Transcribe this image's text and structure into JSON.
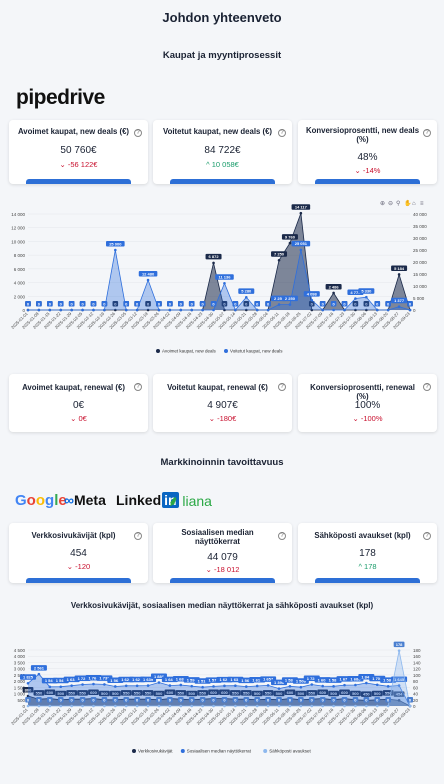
{
  "page": {
    "title": "Johdon yhteenveto"
  },
  "sales": {
    "section_title": "Kaupat ja myyntiprosessit",
    "logo_text": "pipedrive",
    "cards_new": [
      {
        "label": "Avoimet kaupat, new deals (€)",
        "value": "50 760€",
        "delta": "-56 122€",
        "delta_dir": "down"
      },
      {
        "label": "Voitetut kaupat, new deals (€)",
        "value": "84 722€",
        "delta": "10 058€",
        "delta_dir": "up"
      },
      {
        "label": "Konversioprosentti, new deals (%)",
        "value": "48%",
        "delta": "-14%",
        "delta_dir": "down"
      }
    ],
    "cards_renewal": [
      {
        "label": "Avoimet kaupat, renewal (€)",
        "value": "0€",
        "delta": "0€",
        "delta_dir": "down"
      },
      {
        "label": "Voitetut kaupat, renewal (€)",
        "value": "4 907€",
        "delta": "-180€",
        "delta_dir": "down"
      },
      {
        "label": "Konversioprosentti, renewal (%)",
        "value": "100%",
        "delta": "-100%",
        "delta_dir": "down"
      }
    ]
  },
  "marketing": {
    "section_title": "Markkinoinnin tavoittavuus",
    "brands": [
      "Google",
      "Meta",
      "Linked",
      "in",
      "liana"
    ],
    "cards": [
      {
        "label": "Verkkosivukävijät (kpl)",
        "value": "454",
        "delta": "-120",
        "delta_dir": "down"
      },
      {
        "label": "Sosiaalisen median näyttökerrat",
        "value": "44 079",
        "delta": "-18 012",
        "delta_dir": "down"
      },
      {
        "label": "Sähköposti avaukset (kpl)",
        "value": "178",
        "delta": "178",
        "delta_dir": "up"
      }
    ],
    "chart2_title": "Verkkosivukävijät, sosiaalisen median näyttökerrat ja sähköposti avaukset (kpl)"
  },
  "chart_data": [
    {
      "type": "area",
      "title": "",
      "y_ticks": [
        "14 000",
        "12 000",
        "10 000",
        "8 000",
        "6 000",
        "4 000",
        "2 000",
        "0"
      ],
      "y2_ticks": [
        "40 000",
        "35 000",
        "30 000",
        "25 000",
        "20 000",
        "15 000",
        "10 000",
        "5 000",
        "0"
      ],
      "ylim": [
        0,
        14000
      ],
      "y2lim": [
        0,
        40000
      ],
      "x": [
        "2025-01-01",
        "2025-01-08",
        "2025-01-15",
        "2025-01-22",
        "2025-01-29",
        "2025-02-05",
        "2025-02-12",
        "2025-02-19",
        "2025-02-26",
        "2025-03-05",
        "2025-03-12",
        "2025-03-19",
        "2025-03-26",
        "2025-04-02",
        "2025-04-09",
        "2025-04-16",
        "2025-04-23",
        "2025-04-30",
        "2025-05-07",
        "2025-05-14",
        "2025-05-21",
        "2025-05-28",
        "2025-06-04",
        "2025-06-11",
        "2025-06-18",
        "2025-06-25",
        "2025-07-02",
        "2025-07-09",
        "2025-07-16",
        "2025-07-23",
        "2025-07-30",
        "2025-08-06",
        "2025-08-13",
        "2025-08-20",
        "2025-08-27",
        "2025-09-03"
      ],
      "series": [
        {
          "name": "Avoimet kaupat, new deals",
          "axis": "left",
          "color": "#1b2a4a",
          "values": [
            0,
            0,
            0,
            0,
            0,
            0,
            0,
            0,
            0,
            0,
            0,
            0,
            0,
            0,
            0,
            0,
            0,
            6872,
            0,
            0,
            0,
            0,
            0,
            7250,
            9760,
            14117,
            0,
            0,
            2486,
            0,
            0,
            0,
            0,
            0,
            5184,
            0
          ]
        },
        {
          "name": "Voitetut kaupat, new deals",
          "axis": "right",
          "color": "#2f6fdc",
          "values": [
            0,
            0,
            0,
            0,
            0,
            0,
            0,
            0,
            25000,
            0,
            0,
            12480,
            0,
            0,
            0,
            0,
            0,
            0,
            11136,
            0,
            5280,
            0,
            0,
            2250,
            2250,
            25051,
            4098,
            0,
            0,
            0,
            4773,
            5330,
            0,
            0,
            1377,
            0
          ]
        }
      ],
      "point_labels": {
        "Avoimet kaupat, new deals": [
          "6 872",
          "7 250",
          "9 760",
          "14 117",
          "2 486",
          "5 184"
        ],
        "Voitetut kaupat, new deals": [
          "25 000",
          "12 480",
          "11 136",
          "5 280",
          "2 250",
          "25 051",
          "4 098",
          "4 773",
          "5 330",
          "1 377"
        ]
      },
      "legend": "bottom"
    },
    {
      "type": "area",
      "title": "Verkkosivukävijät, sosiaalisen median näyttökerrat ja sähköposti avaukset (kpl)",
      "y_ticks": [
        "4 500",
        "4 000",
        "3 500",
        "3 000",
        "2 500",
        "2 000",
        "1 500",
        "1 000",
        "500",
        "0"
      ],
      "y2_ticks": [
        "180",
        "160",
        "140",
        "120",
        "100",
        "80",
        "60",
        "40",
        "20",
        "0"
      ],
      "ylim": [
        0,
        4500
      ],
      "y2lim": [
        0,
        180
      ],
      "x": [
        "2025-01-01",
        "2025-01-08",
        "2025-01-15",
        "2025-01-22",
        "2025-01-29",
        "2025-02-05",
        "2025-02-12",
        "2025-02-19",
        "2025-02-26",
        "2025-03-05",
        "2025-03-12",
        "2025-03-19",
        "2025-03-26",
        "2025-04-02",
        "2025-04-09",
        "2025-04-16",
        "2025-04-23",
        "2025-04-30",
        "2025-05-07",
        "2025-05-14",
        "2025-05-21",
        "2025-05-28",
        "2025-06-04",
        "2025-06-11",
        "2025-06-18",
        "2025-06-25",
        "2025-07-02",
        "2025-07-09",
        "2025-07-16",
        "2025-07-23",
        "2025-07-30",
        "2025-08-06",
        "2025-08-13",
        "2025-08-20",
        "2025-08-27",
        "2025-09-03"
      ],
      "series": [
        {
          "name": "Verkkosivukävijät",
          "axis": "left",
          "color": "#1b2a4a",
          "values": [
            800,
            550,
            600,
            500,
            550,
            550,
            600,
            500,
            500,
            550,
            550,
            550,
            500,
            600,
            550,
            500,
            550,
            600,
            600,
            550,
            550,
            500,
            550,
            500,
            600,
            500,
            550,
            600,
            500,
            600,
            500,
            450,
            500,
            550,
            454,
            0
          ]
        },
        {
          "name": "Sosiaalisen median näyttökerrat",
          "axis": "left",
          "color": "#2f6fdc",
          "values": [
            1825,
            2561,
            1541,
            1547,
            1633,
            1728,
            1766,
            1736,
            1568,
            1624,
            1623,
            1639,
            1886,
            1642,
            1689,
            1594,
            1510,
            1577,
            1622,
            1632,
            1561,
            1611,
            1657,
            1396,
            1583,
            1508,
            1728,
            1602,
            1580,
            1677,
            1688,
            1846,
            1703,
            1580,
            1645,
            0
          ]
        },
        {
          "name": "Sähköposti avaukset",
          "axis": "right",
          "color": "#8db8ee",
          "values": [
            0,
            0,
            0,
            0,
            0,
            0,
            0,
            0,
            0,
            0,
            0,
            0,
            0,
            0,
            0,
            0,
            0,
            0,
            0,
            0,
            0,
            0,
            0,
            0,
            0,
            0,
            0,
            0,
            0,
            0,
            0,
            0,
            0,
            0,
            178,
            0
          ]
        }
      ],
      "legend": "bottom"
    }
  ]
}
